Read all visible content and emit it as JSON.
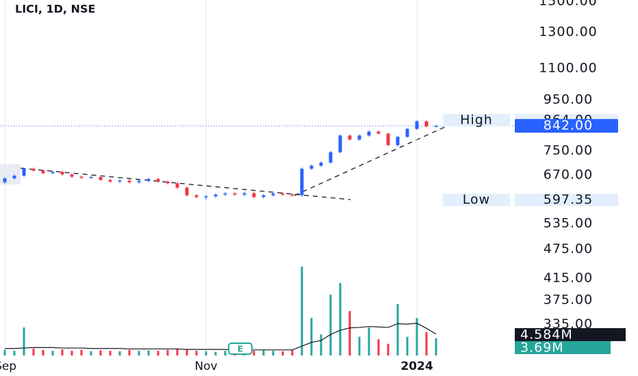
{
  "chart_data": {
    "type": "candlestick",
    "title": "LICI, 1D, NSE",
    "categories": [
      "Sep",
      null,
      null,
      null,
      null,
      null,
      null,
      null,
      null,
      null,
      null,
      null,
      null,
      null,
      null,
      null,
      null,
      null,
      null,
      null,
      null,
      "Nov",
      null,
      null,
      null,
      null,
      null,
      null,
      null,
      null,
      null,
      null,
      null,
      null,
      null,
      null,
      null,
      null,
      null,
      null,
      null,
      null,
      null,
      "2024",
      null,
      null
    ],
    "open": [
      648,
      660,
      668,
      690,
      684,
      676,
      680,
      672,
      665,
      662,
      664,
      655,
      650,
      653,
      648,
      652,
      658,
      650,
      645,
      632,
      610,
      605,
      607,
      612,
      615,
      612,
      616,
      605,
      610,
      615,
      612,
      610,
      690,
      700,
      710,
      745,
      805,
      790,
      805,
      820,
      812,
      770,
      800,
      830,
      860,
      840
    ],
    "high": [
      664,
      672,
      694,
      694,
      688,
      684,
      684,
      676,
      669,
      668,
      668,
      659,
      657,
      657,
      656,
      662,
      662,
      654,
      649,
      636,
      614,
      611,
      616,
      619,
      619,
      620,
      620,
      614,
      619,
      619,
      616,
      694,
      704,
      714,
      749,
      809,
      809,
      809,
      824,
      824,
      816,
      804,
      834,
      864,
      864,
      846
    ],
    "low": [
      644,
      656,
      664,
      680,
      672,
      672,
      668,
      661,
      658,
      658,
      651,
      646,
      646,
      644,
      644,
      648,
      646,
      641,
      628,
      606,
      601,
      597.35,
      603,
      608,
      608,
      608,
      601,
      601,
      606,
      608,
      606,
      606,
      686,
      696,
      706,
      741,
      786,
      786,
      801,
      808,
      766,
      766,
      796,
      826,
      836,
      836
    ],
    "close": [
      660,
      668,
      690,
      684,
      676,
      680,
      672,
      665,
      662,
      664,
      655,
      650,
      653,
      648,
      652,
      658,
      650,
      645,
      632,
      610,
      605,
      607,
      612,
      615,
      612,
      616,
      605,
      610,
      615,
      612,
      610,
      690,
      700,
      710,
      745,
      805,
      790,
      805,
      820,
      812,
      770,
      800,
      830,
      860,
      840,
      842
    ],
    "up_color": "#2962ff",
    "down_color": "#f23645",
    "ylim": [
      290,
      1510
    ],
    "log_scale": true,
    "yticks": [
      {
        "value": 1500,
        "label": "1500.00"
      },
      {
        "value": 1300,
        "label": "1300.00"
      },
      {
        "value": 1100,
        "label": "1100.00"
      },
      {
        "value": 950,
        "label": "950.00"
      },
      {
        "value": 750,
        "label": "750.00"
      },
      {
        "value": 670,
        "label": "670.00"
      },
      {
        "value": 535,
        "label": "535.00"
      },
      {
        "value": 475,
        "label": "475.00"
      },
      {
        "value": 415,
        "label": "415.00"
      },
      {
        "value": 375,
        "label": "375.00"
      },
      {
        "value": 335,
        "label": "335.00"
      }
    ],
    "last_price": {
      "value": 842,
      "label": "842.00"
    },
    "high_marker": {
      "name": "High",
      "value": 864,
      "label": "864.00"
    },
    "low_marker": {
      "name": "Low",
      "value": 597.35,
      "label": "597.35"
    },
    "volume": {
      "values": [
        1.2,
        1.0,
        6.0,
        1.5,
        1.2,
        1.0,
        1.3,
        1.0,
        1.2,
        0.9,
        1.1,
        1.0,
        0.9,
        1.2,
        1.0,
        1.1,
        1.0,
        1.2,
        1.5,
        1.3,
        1.0,
        0.9,
        0.8,
        1.0,
        0.9,
        1.3,
        1.0,
        1.1,
        1.0,
        0.9,
        1.2,
        19.0,
        8.0,
        4.5,
        13.0,
        15.5,
        9.5,
        4.0,
        6.0,
        3.5,
        2.5,
        11.0,
        4.0,
        8.0,
        5.0,
        3.69
      ],
      "ma": [
        1.5,
        1.5,
        1.6,
        1.7,
        1.7,
        1.7,
        1.6,
        1.6,
        1.6,
        1.5,
        1.5,
        1.5,
        1.5,
        1.4,
        1.4,
        1.4,
        1.4,
        1.4,
        1.4,
        1.3,
        1.3,
        1.3,
        1.3,
        1.3,
        1.2,
        1.2,
        1.2,
        1.2,
        1.2,
        1.2,
        1.2,
        2.0,
        2.8,
        3.2,
        4.5,
        5.4,
        5.9,
        6.0,
        6.2,
        6.1,
        6.0,
        6.8,
        6.7,
        6.9,
        5.8,
        4.584
      ],
      "ma_label": {
        "value": 4.584,
        "label": "4.584M"
      },
      "last_label": {
        "value": 3.69,
        "label": "3.69M"
      },
      "up_color": "#26a69a",
      "down_color": "#f23645",
      "y2lim": [
        0,
        76
      ]
    },
    "event": "E"
  }
}
